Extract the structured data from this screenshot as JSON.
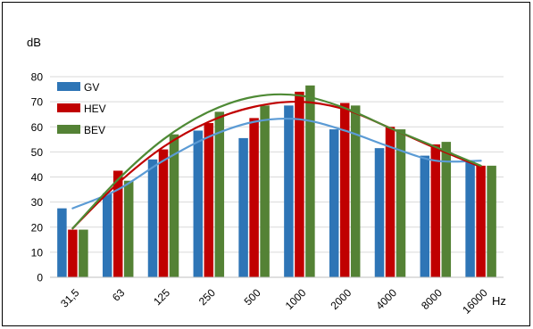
{
  "chart_data": {
    "type": "bar",
    "title": "",
    "ylabel": "dB",
    "xlabel": "Hz",
    "ylim": [
      0,
      80
    ],
    "yticks": [
      0,
      10,
      20,
      30,
      40,
      50,
      60,
      70,
      80
    ],
    "categories": [
      "31,5",
      "63",
      "125",
      "250",
      "500",
      "1000",
      "2000",
      "4000",
      "8000",
      "16000"
    ],
    "grid": true,
    "legend_position": "top-left",
    "series": [
      {
        "name": "GV",
        "color": "#2e75b6",
        "values": [
          27.5,
          33.5,
          47,
          58.5,
          55.5,
          68.5,
          59,
          51.5,
          48.5,
          46.5
        ],
        "trend": {
          "color": "#5b9bd5",
          "values": [
            27.5,
            35,
            46.5,
            56,
            62,
            63,
            58.5,
            52,
            46.5,
            46.5
          ]
        }
      },
      {
        "name": "HEV",
        "color": "#c00000",
        "values": [
          19,
          42.5,
          51,
          61.5,
          63.5,
          74,
          69.5,
          60,
          53,
          44.5
        ],
        "trend": {
          "color": "#c00000",
          "values": [
            19.5,
            37.5,
            52,
            62,
            68,
            70,
            67,
            59.5,
            51.5,
            44
          ]
        }
      },
      {
        "name": "BEV",
        "color": "#548235",
        "values": [
          19,
          38.5,
          57,
          66,
          68.5,
          76.5,
          68.5,
          59,
          54,
          44.5
        ],
        "trend": {
          "color": "#4e8a35",
          "values": [
            19.5,
            39,
            55,
            66,
            72,
            72.5,
            67.5,
            59.5,
            52,
            44.5
          ]
        }
      }
    ]
  }
}
